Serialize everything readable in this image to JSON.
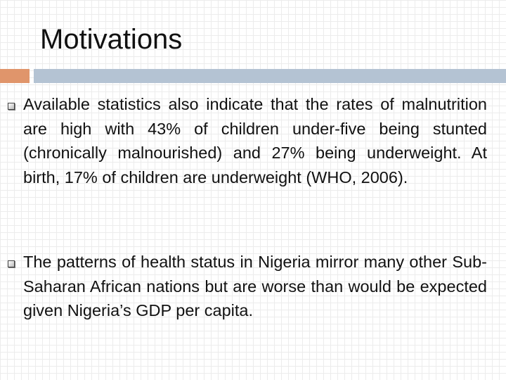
{
  "title": "Motivations",
  "bullets": [
    "Available statistics also indicate that the rates of malnutrition are high with 43% of children under-five being stunted (chronically malnourished) and 27% being underweight. At birth, 17% of children are underweight (WHO, 2006).",
    "The patterns of health status in Nigeria mirror many other Sub-Saharan African nations but are worse than would be expected given Nigeria’s GDP per capita."
  ]
}
